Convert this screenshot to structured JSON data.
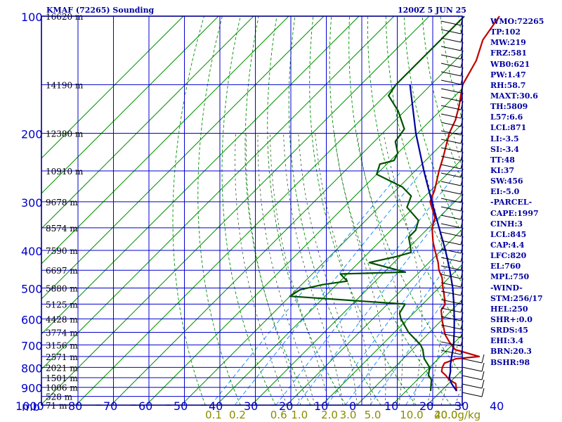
{
  "header": {
    "title": "KMAF (72265) Sounding",
    "time": "1200Z  5 JUN 25"
  },
  "indices": [
    "WMO:72265",
    "TP:102",
    "MW:219",
    "FRZ:581",
    "WB0:621",
    "PW:1.47",
    "RH:58.7",
    "MAXT:30.6",
    "TH:5809",
    "L57:6.6",
    "LCL:871",
    "LI:-3.5",
    "SI:-3.4",
    "TT:48",
    "KI:37",
    "SW:456",
    "EI:-5.0",
    "-PARCEL-",
    "CAPE:1997",
    "CINH:3",
    "LCL:845",
    "CAP:4.4",
    "LFC:820",
    "EL:760",
    "MPL:750",
    "-WIND-",
    "STM:256/17",
    "HEL:250",
    "SHR+:0.0",
    "SRDS:45",
    "EHI:3.4",
    "BRN:20.3",
    "BSHR:98"
  ],
  "colors": {
    "frame": "#00008b",
    "grid": "#0000cd",
    "dry_adiabat": "#009000",
    "moist_adiabat": "#2f4f2f",
    "mixing_ratio": "#1e90ff",
    "temperature": "#c00000",
    "dewpoint": "#005000",
    "parcel": "#0000a0",
    "axis_label": "#0000cd",
    "mixing_label": "#8b8b00"
  },
  "chart_data": {
    "type": "line",
    "title": "KMAF (72265) Sounding",
    "y_unit_label": "mb",
    "pressure_ticks": [
      "100",
      "200",
      "300",
      "400",
      "500",
      "600",
      "700",
      "800",
      "900",
      "1000"
    ],
    "temperature_ticks": [
      "80",
      "70",
      "60",
      "50",
      "40",
      "30",
      "20",
      "10",
      "0",
      "10",
      "20",
      "30",
      "40"
    ],
    "temperature_tick_values": [
      -80,
      -70,
      -60,
      -50,
      -40,
      -30,
      -20,
      -10,
      0,
      10,
      20,
      30,
      40
    ],
    "height_labels": [
      "16620 m",
      "14190 m",
      "12380 m",
      "10910 m",
      "9678 m",
      "8574 m",
      "7590 m",
      "6697 m",
      "5880 m",
      "5125 m",
      "4428 m",
      "3774 m",
      "3156 m",
      "2571 m",
      "2021 m",
      "1501 m",
      "1006 m",
      "528 m",
      "71 m"
    ],
    "height_label_pressures": [
      100,
      150,
      200,
      250,
      300,
      350,
      400,
      450,
      500,
      550,
      600,
      650,
      700,
      750,
      800,
      850,
      900,
      950,
      1000
    ],
    "mixing_ratio_labels": [
      "0.1",
      "0.2",
      "0.6",
      "1.0",
      "2.0",
      "3.0",
      "5.0",
      "10.0",
      "20.0",
      "40.0"
    ],
    "mixing_ratio_values": [
      0.1,
      0.2,
      0.6,
      1.0,
      2.0,
      3.0,
      5.0,
      10.0,
      20.0,
      40.0
    ],
    "mixing_ratio_unit": "g/kg",
    "pressure_range": [
      100,
      1000
    ],
    "temperature_range": [
      -80,
      40
    ],
    "series": [
      {
        "key": "temperature",
        "pressure": [
          920,
          880,
          860,
          840,
          820,
          800,
          780,
          760,
          750,
          720,
          690,
          660,
          640,
          610,
          570,
          550,
          520,
          500,
          470,
          450,
          430,
          400,
          380,
          350,
          330,
          300,
          280,
          250,
          230,
          200,
          185,
          170,
          150,
          130,
          115,
          100
        ],
        "temperature": [
          24.4,
          22.0,
          19.0,
          17.0,
          14.6,
          13.6,
          13.0,
          15.0,
          21.0,
          12.2,
          8.6,
          5.2,
          3.4,
          0.6,
          -3.0,
          -3.6,
          -6.6,
          -8.8,
          -12.0,
          -15.0,
          -17.4,
          -21.8,
          -24.8,
          -29.0,
          -31.0,
          -37.0,
          -39.0,
          -43.2,
          -46.0,
          -51.0,
          -53.0,
          -56.0,
          -61.0,
          -64.0,
          -68.0,
          -70.0
        ]
      },
      {
        "key": "dewpoint",
        "pressure": [
          920,
          880,
          860,
          840,
          820,
          800,
          760,
          740,
          720,
          700,
          650,
          600,
          580,
          550,
          525,
          505,
          490,
          480,
          460,
          455,
          430,
          415,
          405,
          390,
          370,
          355,
          335,
          310,
          290,
          275,
          255,
          240,
          235,
          225,
          210,
          195,
          175,
          160,
          150,
          100
        ],
        "dewpoint": [
          17.0,
          15.0,
          14.0,
          12.0,
          11.0,
          10.0,
          6.0,
          4.5,
          3.0,
          1.0,
          -6.0,
          -12.0,
          -14.0,
          -15.0,
          -50.0,
          -49.0,
          -44.0,
          -38.0,
          -42.0,
          -24.0,
          -37.0,
          -31.0,
          -28.0,
          -30.0,
          -33.0,
          -33.0,
          -35.0,
          -42.0,
          -44.0,
          -49.0,
          -60.0,
          -62.0,
          -59.0,
          -60.0,
          -64.0,
          -65.0,
          -72.0,
          -79.0,
          -80.0,
          -80.0
        ]
      },
      {
        "key": "parcel",
        "pressure": [
          920,
          880,
          850,
          820,
          790,
          760,
          730,
          700,
          650,
          600,
          550,
          500,
          450,
          400,
          350,
          300,
          250,
          200,
          150
        ],
        "temperature": [
          24.4,
          20.8,
          18.5,
          17.1,
          15.3,
          13.7,
          12.1,
          10.4,
          7.0,
          3.2,
          -1.1,
          -6.0,
          -11.9,
          -18.8,
          -27.0,
          -36.5,
          -47.5,
          -60.5,
          -76.0
        ]
      }
    ],
    "wind_barbs": "right-margin"
  }
}
